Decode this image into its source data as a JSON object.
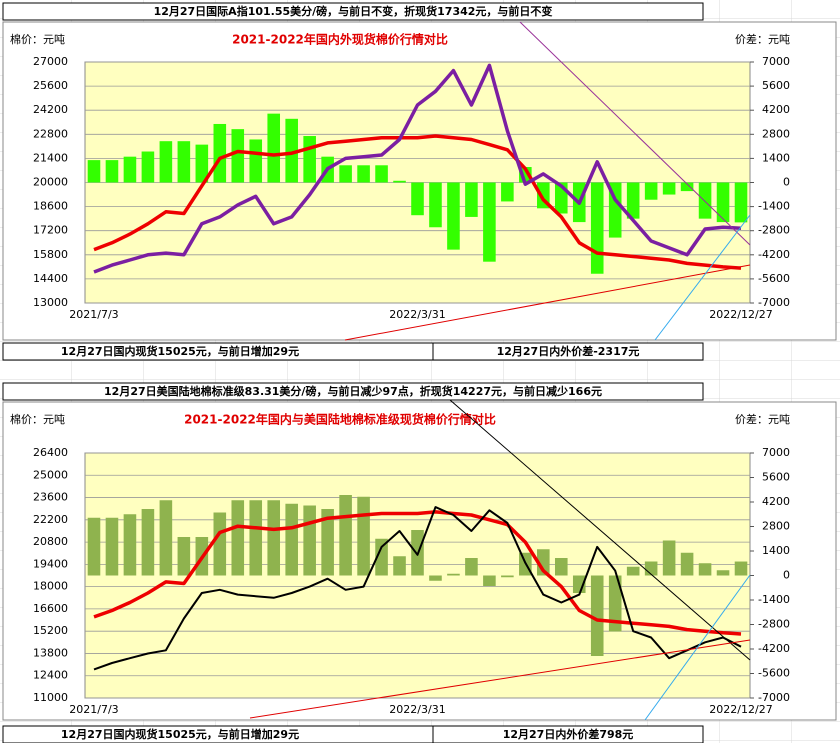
{
  "chart_data": [
    {
      "type": "combo",
      "headline": "12月27日国际A指101.55美分/磅，与前日不变，折现货17342元，与前日不变",
      "title": "2021-2022年国内外现货棉价行情对比",
      "y_label": "棉价：元吨",
      "y2_label": "价差：元吨",
      "footnote_left": "12月27日国内现货15025元，与前日增加29元",
      "footnote_right": "12月27日内外价差-2317元",
      "categories": [
        "2021/7/3",
        null,
        null,
        null,
        null,
        null,
        null,
        null,
        null,
        null,
        null,
        null,
        null,
        null,
        null,
        null,
        null,
        null,
        "2022/3/31",
        null,
        null,
        null,
        null,
        null,
        null,
        null,
        null,
        null,
        null,
        null,
        null,
        null,
        null,
        null,
        null,
        null,
        "2022/12/27"
      ],
      "ylim": [
        13000,
        27000
      ],
      "yticks": [
        13000,
        14400,
        15800,
        17200,
        18600,
        20000,
        21400,
        22800,
        24200,
        25600,
        27000
      ],
      "y2lim": [
        -7000,
        7000
      ],
      "y2ticks": [
        -7000,
        -5600,
        -4200,
        -2800,
        -1400,
        0,
        1400,
        2800,
        4200,
        5600,
        7000
      ],
      "grid": true,
      "series": [
        {
          "type": "bar",
          "axis": "y2",
          "color": "#33ff00",
          "values": [
            1300,
            1300,
            1500,
            1800,
            2400,
            2400,
            2200,
            3400,
            3100,
            2500,
            4000,
            3700,
            2700,
            1500,
            1000,
            1000,
            1000,
            100,
            -1900,
            -2600,
            -3900,
            -2000,
            -4600,
            -1100,
            900,
            -1500,
            -1800,
            -2300,
            -5300,
            -3200,
            -2100,
            -1000,
            -700,
            -500,
            -2100,
            -2300,
            -2317
          ]
        },
        {
          "type": "line",
          "color": "#ee0000",
          "values": [
            16100,
            16500,
            17000,
            17600,
            18300,
            18200,
            19800,
            21400,
            21800,
            21700,
            21600,
            21700,
            22000,
            22300,
            22400,
            22500,
            22600,
            22600,
            22600,
            22700,
            22600,
            22500,
            22200,
            21900,
            20800,
            19000,
            18000,
            16500,
            15900,
            15800,
            15700,
            15600,
            15500,
            15300,
            15200,
            15100,
            15025
          ]
        },
        {
          "type": "line",
          "color": "#7b1fa2",
          "values": [
            14800,
            15200,
            15500,
            15800,
            15900,
            15800,
            17600,
            18000,
            18700,
            19200,
            17600,
            18000,
            19300,
            20800,
            21400,
            21500,
            21600,
            22500,
            24500,
            25300,
            26500,
            24500,
            26800,
            23000,
            19900,
            20500,
            19800,
            18800,
            21200,
            19000,
            17800,
            16600,
            16200,
            15800,
            17300,
            17400,
            17342
          ]
        }
      ]
    },
    {
      "type": "combo",
      "headline": "12月27日美国陆地棉标准级83.31美分/磅，与前日减少97点，折现货14227元，与前日减少166元",
      "title": "2021-2022年国内与美国陆地棉标准级现货棉价行情对比",
      "y_label": "棉价：元吨",
      "y2_label": "价差：元吨",
      "footnote_left": "12月27日国内现货15025元，与前日增加29元",
      "footnote_right": "12月27日内外价差798元",
      "categories": [
        "2021/7/3",
        null,
        null,
        null,
        null,
        null,
        null,
        null,
        null,
        null,
        null,
        null,
        null,
        null,
        null,
        null,
        null,
        null,
        "2022/3/31",
        null,
        null,
        null,
        null,
        null,
        null,
        null,
        null,
        null,
        null,
        null,
        null,
        null,
        null,
        null,
        null,
        null,
        "2022/12/27"
      ],
      "ylim": [
        11000,
        26400
      ],
      "yticks": [
        11000,
        12400,
        13800,
        15200,
        16600,
        18000,
        19400,
        20800,
        22200,
        23600,
        25000,
        26400
      ],
      "y2lim": [
        -7000,
        7000
      ],
      "y2ticks": [
        -7000,
        -5600,
        -4200,
        -2800,
        -1400,
        0,
        1400,
        2800,
        4200,
        5600,
        7000
      ],
      "grid": true,
      "series": [
        {
          "type": "bar",
          "axis": "y2",
          "color": "#8fb34e",
          "values": [
            3300,
            3300,
            3500,
            3800,
            4300,
            2200,
            2200,
            3600,
            4300,
            4300,
            4300,
            4100,
            4000,
            3800,
            4600,
            4500,
            2100,
            1100,
            2600,
            -300,
            100,
            1000,
            -600,
            -100,
            1300,
            1500,
            1000,
            -1000,
            -4600,
            -3200,
            500,
            800,
            2000,
            1300,
            700,
            300,
            798
          ]
        },
        {
          "type": "line",
          "color": "#ee0000",
          "values": [
            16100,
            16500,
            17000,
            17600,
            18300,
            18200,
            19800,
            21400,
            21800,
            21700,
            21600,
            21700,
            22000,
            22300,
            22400,
            22500,
            22600,
            22600,
            22600,
            22700,
            22600,
            22500,
            22200,
            21900,
            20800,
            19000,
            18000,
            16500,
            15900,
            15800,
            15700,
            15600,
            15500,
            15300,
            15200,
            15100,
            15025
          ]
        },
        {
          "type": "line",
          "color": "#000000",
          "values": [
            12800,
            13200,
            13500,
            13800,
            14000,
            16000,
            17600,
            17800,
            17500,
            17400,
            17300,
            17600,
            18000,
            18500,
            17800,
            18000,
            20500,
            21500,
            20000,
            23000,
            22500,
            21500,
            22800,
            22000,
            19500,
            17500,
            17000,
            17500,
            20500,
            19000,
            15200,
            14800,
            13500,
            14000,
            14500,
            14800,
            14227
          ]
        }
      ]
    }
  ]
}
